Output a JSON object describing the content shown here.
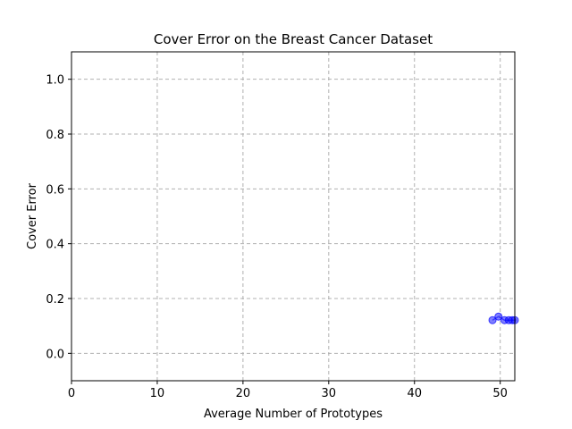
{
  "chart_data": {
    "type": "line",
    "title": "Cover Error on the Breast Cancer Dataset",
    "xlabel": "Average Number of Prototypes",
    "ylabel": "Cover Error",
    "xlim": [
      0,
      51.7
    ],
    "ylim": [
      -0.1,
      1.1
    ],
    "xticks": [
      0,
      10,
      20,
      30,
      40,
      50
    ],
    "yticks": [
      0.0,
      0.2,
      0.4,
      0.6,
      0.8,
      1.0
    ],
    "xtick_labels": [
      "0",
      "10",
      "20",
      "30",
      "40",
      "50"
    ],
    "ytick_labels": [
      "0.0",
      "0.2",
      "0.4",
      "0.6",
      "0.8",
      "1.0"
    ],
    "grid": true,
    "grid_style": "dashed",
    "series": [
      {
        "color": "#0000ff",
        "marker": "circle",
        "x": [
          49.1,
          49.8,
          50.5,
          51.0,
          51.4,
          51.7
        ],
        "y": [
          0.121,
          0.134,
          0.121,
          0.121,
          0.121,
          0.121
        ]
      }
    ]
  }
}
